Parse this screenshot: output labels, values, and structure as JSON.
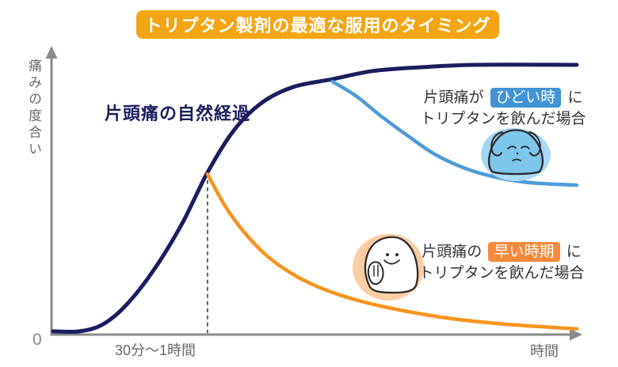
{
  "title": "トリプタン製剤の最適な服用のタイミング",
  "axes": {
    "ylabel": "痛みの度合い",
    "origin_label": "0",
    "x_tick_label": "30分〜1時間",
    "xlabel": "時間"
  },
  "natural_course_label": "片頭痛の自然経過",
  "cases": {
    "severe": {
      "pre": "片頭痛が",
      "badge": "ひどい時",
      "post": "に",
      "line2": "トリプタンを飲んだ場合",
      "badge_color": "#4193D5"
    },
    "early": {
      "pre": "片頭痛の",
      "badge": "早い時期",
      "post": "に",
      "line2": "トリプタンを飲んだ場合",
      "badge_color": "#F6893C"
    }
  },
  "colors": {
    "banner": "#F3A513",
    "navy": "#1A1E5F",
    "blue": "#4E9CD8",
    "orange": "#F7941E",
    "axis": "#8A8A8A",
    "dashed": "#555555",
    "text": "#333333",
    "gray_text": "#6A6A6A"
  },
  "chart_data": {
    "type": "line",
    "title": "トリプタン製剤の最適な服用のタイミング",
    "xlabel": "時間",
    "ylabel": "痛みの度合い",
    "x_ticks": [
      "0",
      "30分〜1時間",
      "時間"
    ],
    "ylim": [
      0,
      1
    ],
    "grid": false,
    "legend_position": "annotated-on-plot",
    "dashed_line": {
      "x": 0.297,
      "y_top": 0.59,
      "label": "30分〜1時間"
    },
    "series": [
      {
        "id": "natural-course-curve",
        "name": "片頭痛の自然経過",
        "color": "#1A1E5F",
        "width": 5,
        "points": [
          [
            0.003,
            0.012
          ],
          [
            0.053,
            0.012
          ],
          [
            0.098,
            0.038
          ],
          [
            0.143,
            0.111
          ],
          [
            0.196,
            0.243
          ],
          [
            0.249,
            0.413
          ],
          [
            0.297,
            0.601
          ],
          [
            0.347,
            0.757
          ],
          [
            0.4,
            0.859
          ],
          [
            0.46,
            0.918
          ],
          [
            0.535,
            0.947
          ],
          [
            0.611,
            0.977
          ],
          [
            0.701,
            0.991
          ],
          [
            0.807,
            1.0
          ],
          [
            1.0,
            1.0
          ]
        ]
      },
      {
        "id": "severe-case-curve",
        "name": "片頭痛がひどい時にトリプタンを飲んだ場合",
        "color": "#4E9CD8",
        "width": 4.5,
        "points": [
          [
            0.535,
            0.938
          ],
          [
            0.581,
            0.883
          ],
          [
            0.626,
            0.812
          ],
          [
            0.679,
            0.736
          ],
          [
            0.732,
            0.666
          ],
          [
            0.792,
            0.613
          ],
          [
            0.852,
            0.581
          ],
          [
            0.912,
            0.563
          ],
          [
            1.0,
            0.554
          ]
        ]
      },
      {
        "id": "early-case-curve",
        "name": "片頭痛の早い時期にトリプタンを飲んだ場合",
        "color": "#F7941E",
        "width": 4.5,
        "points": [
          [
            0.297,
            0.595
          ],
          [
            0.332,
            0.472
          ],
          [
            0.37,
            0.372
          ],
          [
            0.415,
            0.284
          ],
          [
            0.468,
            0.214
          ],
          [
            0.528,
            0.161
          ],
          [
            0.596,
            0.12
          ],
          [
            0.671,
            0.088
          ],
          [
            0.762,
            0.059
          ],
          [
            0.867,
            0.038
          ],
          [
            1.0,
            0.021
          ]
        ]
      }
    ]
  }
}
